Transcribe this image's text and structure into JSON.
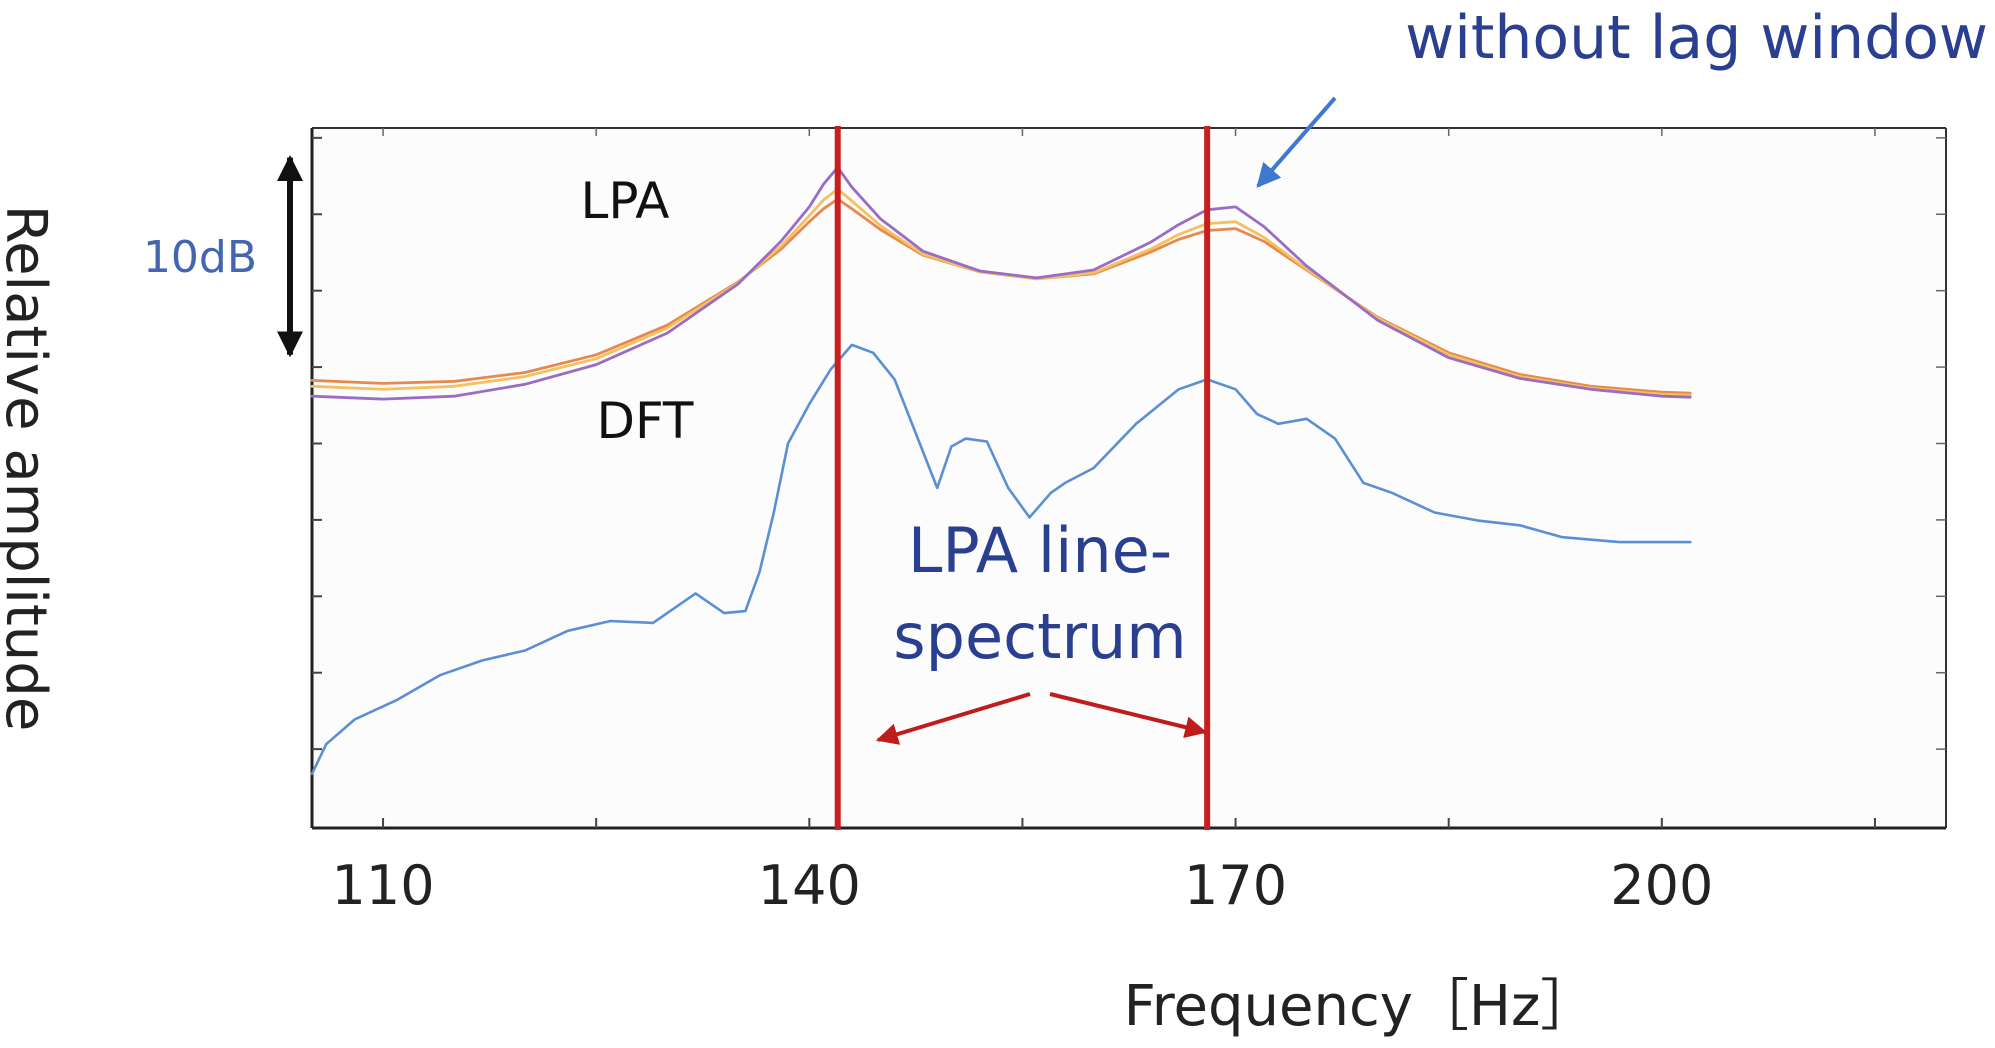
{
  "chart_data": {
    "type": "line",
    "title": "",
    "xlabel": "Frequency［Hz］",
    "ylabel": "Relative amplitude",
    "xlim": [
      105,
      220
    ],
    "ylim": [
      -66,
      5
    ],
    "x_ticks": [
      110,
      140,
      170,
      200
    ],
    "x_tick_labels": [
      "110",
      "140",
      "170",
      "200"
    ],
    "scale_bar": {
      "label": "10dB",
      "y_from": -18,
      "y_to": 2
    },
    "grid": false,
    "line_spectrum_freqs": [
      142,
      168
    ],
    "series": [
      {
        "name": "LPA",
        "color": "#9a6cc4",
        "x": [
          105,
          110,
          115,
          120,
          125,
          130,
          135,
          138,
          140,
          141,
          142,
          143,
          145,
          148,
          152,
          156,
          160,
          164,
          166,
          168,
          170,
          172,
          175,
          180,
          185,
          190,
          195,
          200,
          202
        ],
        "y": [
          -22.2,
          -22.5,
          -22.2,
          -21,
          -19,
          -15.8,
          -10.8,
          -6.5,
          -3,
          -0.7,
          1,
          -1,
          -4.2,
          -7.5,
          -9.5,
          -10.2,
          -9.4,
          -6.6,
          -4.8,
          -3.3,
          -3,
          -5,
          -9,
          -14.5,
          -18.3,
          -20.4,
          -21.5,
          -22.2,
          -22.3
        ]
      },
      {
        "name": "",
        "color": "#e8884c",
        "x": [
          105,
          110,
          115,
          120,
          125,
          130,
          135,
          138,
          140,
          141,
          142,
          143,
          145,
          148,
          152,
          156,
          160,
          164,
          166,
          168,
          170,
          172,
          175,
          180,
          185,
          190,
          195,
          200,
          202
        ],
        "y": [
          -20.6,
          -20.9,
          -20.7,
          -19.8,
          -18,
          -15,
          -10.6,
          -7.3,
          -4.5,
          -3.2,
          -2.2,
          -3.2,
          -5.3,
          -7.9,
          -9.6,
          -10.3,
          -9.8,
          -7.6,
          -6.3,
          -5.4,
          -5.2,
          -6.5,
          -9.4,
          -14.2,
          -17.8,
          -20,
          -21.2,
          -21.8,
          -21.9
        ]
      },
      {
        "name": "",
        "color": "#f4c060",
        "x": [
          105,
          110,
          115,
          120,
          125,
          130,
          135,
          138,
          140,
          141,
          142,
          143,
          145,
          148,
          152,
          156,
          160,
          164,
          166,
          168,
          170,
          172,
          175,
          180,
          185,
          190,
          195,
          200,
          202
        ],
        "y": [
          -21.2,
          -21.5,
          -21.2,
          -20.2,
          -18.4,
          -15.3,
          -10.7,
          -7,
          -3.9,
          -2.3,
          -1.2,
          -2.4,
          -4.9,
          -7.8,
          -9.6,
          -10.3,
          -9.7,
          -7.3,
          -5.8,
          -4.7,
          -4.5,
          -6.1,
          -9.3,
          -14.3,
          -18,
          -20.2,
          -21.4,
          -22,
          -22.1
        ]
      },
      {
        "name": "DFT",
        "color": "#5b8fd4",
        "x": [
          105,
          106,
          108,
          111,
          114,
          117,
          120,
          123,
          126,
          129,
          132,
          134,
          135.5,
          136.5,
          137.5,
          138.5,
          140,
          141.5,
          143,
          144.5,
          146,
          147.5,
          149,
          150,
          151,
          152.5,
          154,
          155.5,
          157,
          158,
          160,
          163,
          166,
          168,
          170,
          171.5,
          173,
          175,
          177,
          179,
          181,
          184,
          187,
          190,
          193,
          197,
          202
        ],
        "y": [
          -60.5,
          -57.5,
          -55,
          -53,
          -50.5,
          -49,
          -48,
          -46,
          -45,
          -45.2,
          -42.2,
          -44.2,
          -44,
          -40,
          -34,
          -27,
          -23,
          -19.5,
          -17,
          -17.8,
          -20.5,
          -26,
          -31.5,
          -27.3,
          -26.5,
          -26.8,
          -31.5,
          -34.5,
          -32,
          -31,
          -29.5,
          -25,
          -21.5,
          -20.5,
          -21.5,
          -24,
          -25,
          -24.5,
          -26.5,
          -31,
          -32,
          -34,
          -34.8,
          -35.3,
          -36.5,
          -37,
          -37
        ]
      }
    ],
    "annotations": {
      "lpa_label": "LPA",
      "dft_label": "DFT",
      "line_spectrum_label_1": "LPA line-",
      "line_spectrum_label_2": "spectrum",
      "lag_window_label": "without lag window"
    }
  }
}
